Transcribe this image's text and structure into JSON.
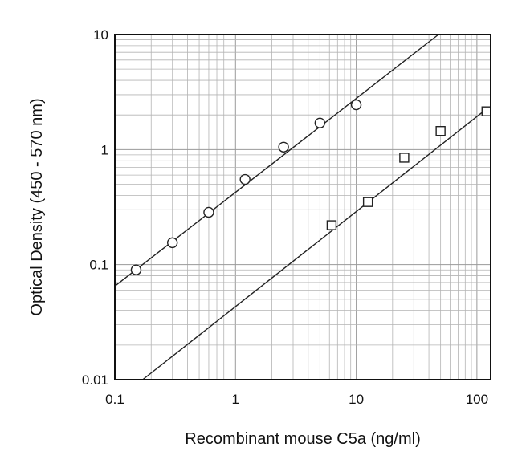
{
  "chart_data": {
    "type": "scatter",
    "title": "",
    "xlabel": "Recombinant mouse C5a (ng/ml)",
    "ylabel": "Optical Density (450 - 570 nm)",
    "x_scale": "log",
    "y_scale": "log",
    "xlim": [
      0.1,
      130
    ],
    "ylim": [
      0.01,
      10
    ],
    "grid": true,
    "x_ticks": [
      {
        "value": 0.1,
        "label": "0.1"
      },
      {
        "value": 1,
        "label": "1"
      },
      {
        "value": 10,
        "label": "10"
      },
      {
        "value": 100,
        "label": "100"
      }
    ],
    "y_ticks": [
      {
        "value": 0.01,
        "label": "0.01"
      },
      {
        "value": 0.1,
        "label": "0.1"
      },
      {
        "value": 1,
        "label": "1"
      },
      {
        "value": 10,
        "label": "10"
      }
    ],
    "series": [
      {
        "marker": "circle",
        "points": [
          {
            "x": 0.15,
            "y": 0.09
          },
          {
            "x": 0.3,
            "y": 0.155
          },
          {
            "x": 0.6,
            "y": 0.285
          },
          {
            "x": 1.2,
            "y": 0.55
          },
          {
            "x": 2.5,
            "y": 1.05
          },
          {
            "x": 5,
            "y": 1.7
          },
          {
            "x": 10,
            "y": 2.45
          }
        ],
        "fit": {
          "x0": 0.1,
          "y0": 0.065,
          "x1": 48,
          "y1": 10
        }
      },
      {
        "marker": "square",
        "points": [
          {
            "x": 6.25,
            "y": 0.22
          },
          {
            "x": 12.5,
            "y": 0.35
          },
          {
            "x": 25,
            "y": 0.85
          },
          {
            "x": 50,
            "y": 1.45
          },
          {
            "x": 120,
            "y": 2.15
          }
        ],
        "fit": {
          "x0": 0.17,
          "y0": 0.01,
          "x1": 120,
          "y1": 2.25
        }
      }
    ]
  }
}
